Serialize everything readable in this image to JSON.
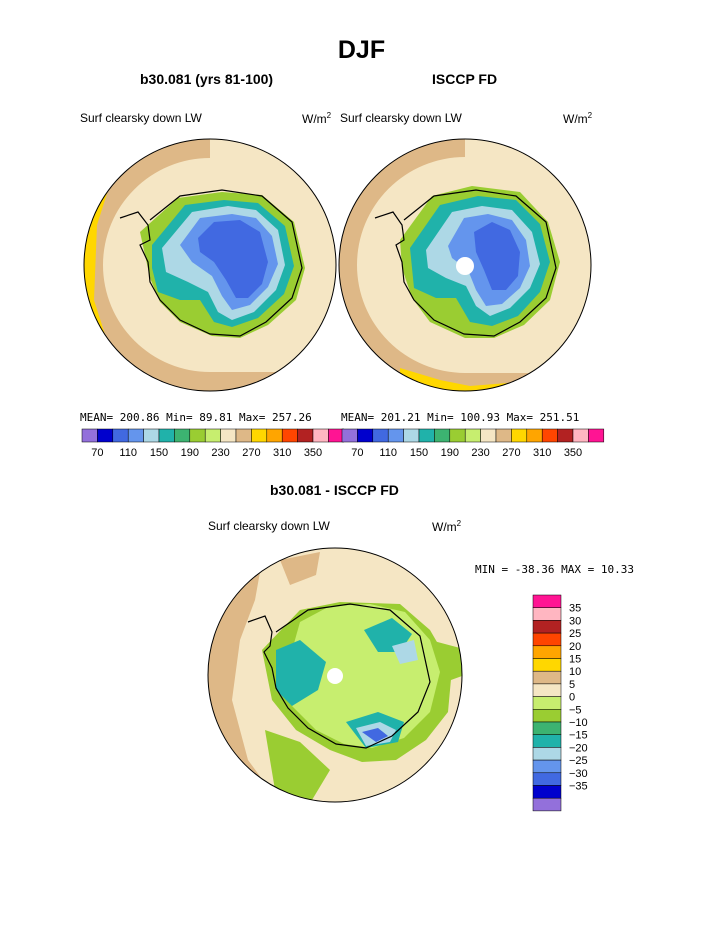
{
  "figure": {
    "title": "DJF",
    "units": "W/m",
    "units_sup": "2"
  },
  "colors": {
    "scale": [
      "#9370db",
      "#0000cd",
      "#4169e1",
      "#6495ed",
      "#add8e6",
      "#20b2aa",
      "#3cb371",
      "#9acd32",
      "#c7ee6f",
      "#f5e6c4",
      "#deb887",
      "#ffd700",
      "#ffa500",
      "#ff4500",
      "#b22222",
      "#ffb6c1",
      "#ff1493"
    ],
    "land_outline": "#000000"
  },
  "chart_data": [
    {
      "type": "heatmap",
      "title": "b30.081 (yrs 81-100)",
      "variable": "Surf clearsky down LW",
      "units": "W/m2",
      "stats": {
        "mean": "200.86",
        "min": "89.81",
        "max": "257.26"
      },
      "stats_text": "MEAN= 200.86   Min=  89.81   Max= 257.26",
      "colorbar": {
        "levels": [
          70,
          90,
          110,
          130,
          150,
          170,
          190,
          210,
          230,
          250,
          270,
          290,
          310,
          330,
          350
        ],
        "labels": [
          "70",
          "110",
          "150",
          "190",
          "230",
          "270",
          "310",
          "350"
        ]
      }
    },
    {
      "type": "heatmap",
      "title": "ISCCP FD",
      "variable": "Surf clearsky down LW",
      "units": "W/m2",
      "stats": {
        "mean": "201.21",
        "min": "100.93",
        "max": "251.51"
      },
      "stats_text": "MEAN= 201.21   Min= 100.93   Max= 251.51",
      "colorbar": {
        "levels": [
          70,
          90,
          110,
          130,
          150,
          170,
          190,
          210,
          230,
          250,
          270,
          290,
          310,
          330,
          350
        ],
        "labels": [
          "70",
          "110",
          "150",
          "190",
          "230",
          "270",
          "310",
          "350"
        ]
      }
    },
    {
      "type": "heatmap",
      "title": "b30.081 - ISCCP FD",
      "variable": "Surf clearsky down LW",
      "units": "W/m2",
      "stats": {
        "min": "-38.36",
        "max": "10.33"
      },
      "stats_text": "MIN = -38.36  MAX =  10.33",
      "colorbar": {
        "levels": [
          -35,
          -30,
          -25,
          -20,
          -15,
          -10,
          -5,
          0,
          5,
          10,
          15,
          20,
          25,
          30,
          35
        ],
        "labels": [
          "35",
          "30",
          "25",
          "20",
          "15",
          "10",
          "5",
          "0",
          "−5",
          "−10",
          "−15",
          "−20",
          "−25",
          "−30",
          "−35"
        ]
      }
    }
  ]
}
